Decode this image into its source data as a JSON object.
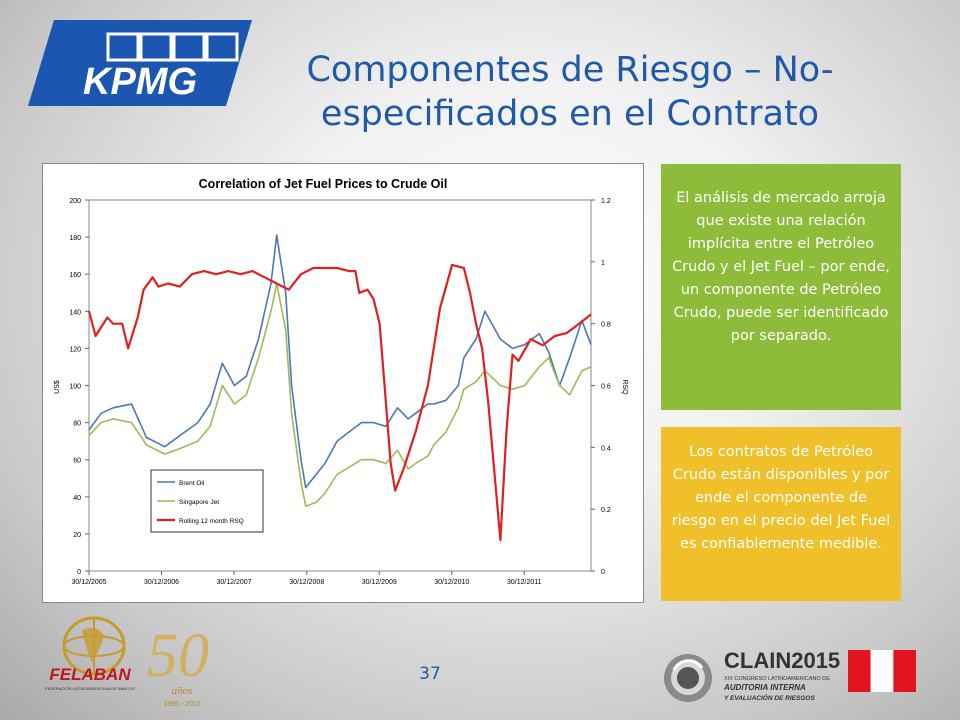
{
  "logo": {
    "text": "KPMG"
  },
  "title": "Componentes de Riesgo – No-especificados en el Contrato",
  "callouts": [
    {
      "text": "El análisis de mercado arroja que existe una relación implícita entre el Petróleo Crudo y el Jet Fuel – por ende, un componente de Petróleo Crudo, puede ser identificado por separado."
    },
    {
      "text": "Los contratos de Petróleo Crudo están disponibles y por ende el componente de riesgo en el precio del Jet Fuel es confiablemente medible."
    }
  ],
  "page_number": "37",
  "footer": {
    "felaban_text": "FELABAN",
    "felaban_sub": "FEDERACIÓN LATINOAMERICANA DE BANCOS",
    "fifty": "50",
    "anos": "años",
    "years": "1965 - 2015",
    "clain_text": "CLAIN2015",
    "clain_sub1": "XIX CONGRESO LATINOAMERICANO DE",
    "clain_sub2": "AUDITORIA INTERNA",
    "clain_sub3": "Y EVALUACIÓN DE RIESGOS"
  },
  "colors": {
    "brent": "#4a78b8",
    "jet": "#9bbb59",
    "rsq": "#e02020",
    "title_blue": "#1f5aa8",
    "green_box": "#8cbc3a",
    "yellow_box": "#f0c02a"
  },
  "chart_data": {
    "type": "line",
    "title": "Correlation of Jet Fuel Prices to Crude Oil",
    "ylabel": "US$",
    "y2label": "RSQ",
    "x_ticks": [
      "30/12/2005",
      "30/12/2006",
      "30/12/2007",
      "30/12/2008",
      "30/12/2009",
      "30/12/2010",
      "30/12/2011"
    ],
    "x_range": [
      "2005-12-30",
      "2012-11-30"
    ],
    "ylim": [
      0,
      200
    ],
    "y_ticks": [
      0,
      20,
      40,
      60,
      80,
      100,
      120,
      140,
      160,
      180,
      200
    ],
    "y2lim": [
      0,
      1.2
    ],
    "y2_ticks": [
      "0",
      "0.2",
      "0.4",
      "0.6",
      "0.8",
      "1",
      "1.2"
    ],
    "legend_position": "bottom-left",
    "series": [
      {
        "name": "Brent Oil",
        "axis": "left",
        "x": [
          "2005-12-30",
          "2006-03-01",
          "2006-05-01",
          "2006-08-01",
          "2006-10-15",
          "2007-01-15",
          "2007-04-01",
          "2007-07-01",
          "2007-09-01",
          "2007-11-01",
          "2008-01-01",
          "2008-03-01",
          "2008-05-01",
          "2008-07-03",
          "2008-08-01",
          "2008-09-15",
          "2008-10-15",
          "2008-12-01",
          "2008-12-25",
          "2009-02-15",
          "2009-04-01",
          "2009-06-01",
          "2009-08-01",
          "2009-10-01",
          "2009-12-01",
          "2010-02-01",
          "2010-04-01",
          "2010-05-25",
          "2010-07-01",
          "2010-09-01",
          "2010-10-01",
          "2010-12-01",
          "2011-02-01",
          "2011-03-01",
          "2011-05-01",
          "2011-06-15",
          "2011-09-01",
          "2011-11-01",
          "2012-01-01",
          "2012-03-15",
          "2012-05-01",
          "2012-06-25",
          "2012-08-15",
          "2012-10-15",
          "2012-11-30"
        ],
        "y": [
          76,
          85,
          88,
          90,
          72,
          67,
          73,
          80,
          90,
          112,
          100,
          105,
          125,
          155,
          181,
          150,
          100,
          60,
          45,
          52,
          58,
          70,
          75,
          80,
          80,
          78,
          88,
          82,
          85,
          90,
          90,
          92,
          100,
          115,
          125,
          140,
          125,
          120,
          122,
          128,
          118,
          100,
          115,
          135,
          122
        ]
      },
      {
        "name": "Singapore Jet",
        "axis": "left",
        "x": [
          "2005-12-30",
          "2006-03-01",
          "2006-05-01",
          "2006-08-01",
          "2006-10-15",
          "2007-01-15",
          "2007-04-01",
          "2007-07-01",
          "2007-09-01",
          "2007-11-01",
          "2008-01-01",
          "2008-03-01",
          "2008-05-01",
          "2008-07-03",
          "2008-08-01",
          "2008-09-15",
          "2008-10-15",
          "2008-12-01",
          "2008-12-25",
          "2009-02-15",
          "2009-04-01",
          "2009-06-01",
          "2009-08-01",
          "2009-10-01",
          "2009-12-01",
          "2010-02-01",
          "2010-04-01",
          "2010-05-25",
          "2010-07-01",
          "2010-09-01",
          "2010-10-01",
          "2010-12-01",
          "2011-02-01",
          "2011-03-01",
          "2011-05-01",
          "2011-06-15",
          "2011-09-01",
          "2011-11-01",
          "2012-01-01",
          "2012-03-15",
          "2012-05-01",
          "2012-06-25",
          "2012-08-15",
          "2012-10-15",
          "2012-11-30"
        ],
        "y": [
          73,
          80,
          82,
          80,
          68,
          63,
          66,
          70,
          78,
          100,
          90,
          95,
          115,
          140,
          155,
          130,
          85,
          48,
          35,
          37,
          42,
          52,
          56,
          60,
          60,
          58,
          65,
          55,
          58,
          62,
          68,
          75,
          88,
          98,
          102,
          108,
          100,
          98,
          100,
          110,
          115,
          100,
          95,
          108,
          110
        ]
      },
      {
        "name": "Rolling 12 month RSQ",
        "axis": "right",
        "x": [
          "2005-12-30",
          "2006-02-01",
          "2006-04-01",
          "2006-05-01",
          "2006-06-15",
          "2006-07-15",
          "2006-09-01",
          "2006-10-01",
          "2006-11-15",
          "2006-12-15",
          "2007-02-01",
          "2007-04-01",
          "2007-06-01",
          "2007-08-01",
          "2007-10-01",
          "2007-12-01",
          "2008-02-01",
          "2008-04-01",
          "2008-06-01",
          "2008-08-01",
          "2008-10-01",
          "2008-12-01",
          "2009-02-01",
          "2009-04-01",
          "2009-06-01",
          "2009-08-01",
          "2009-09-01",
          "2009-09-20",
          "2009-11-01",
          "2009-12-01",
          "2010-01-01",
          "2010-02-01",
          "2010-02-25",
          "2010-03-20",
          "2010-05-01",
          "2010-07-01",
          "2010-09-01",
          "2010-11-01",
          "2011-01-01",
          "2011-03-01",
          "2011-04-01",
          "2011-05-01",
          "2011-06-01",
          "2011-07-01",
          "2011-09-01",
          "2011-10-01",
          "2011-11-01",
          "2011-12-01",
          "2012-02-01",
          "2012-04-01",
          "2012-06-01",
          "2012-08-01",
          "2012-10-01",
          "2012-11-30"
        ],
        "y": [
          0.84,
          0.76,
          0.82,
          0.8,
          0.8,
          0.72,
          0.82,
          0.91,
          0.95,
          0.92,
          0.93,
          0.92,
          0.96,
          0.97,
          0.96,
          0.97,
          0.96,
          0.97,
          0.95,
          0.93,
          0.91,
          0.96,
          0.98,
          0.98,
          0.98,
          0.97,
          0.97,
          0.9,
          0.91,
          0.88,
          0.8,
          0.55,
          0.35,
          0.26,
          0.33,
          0.45,
          0.6,
          0.85,
          0.99,
          0.98,
          0.9,
          0.8,
          0.72,
          0.55,
          0.1,
          0.45,
          0.7,
          0.68,
          0.75,
          0.73,
          0.76,
          0.77,
          0.8,
          0.83
        ]
      }
    ]
  }
}
